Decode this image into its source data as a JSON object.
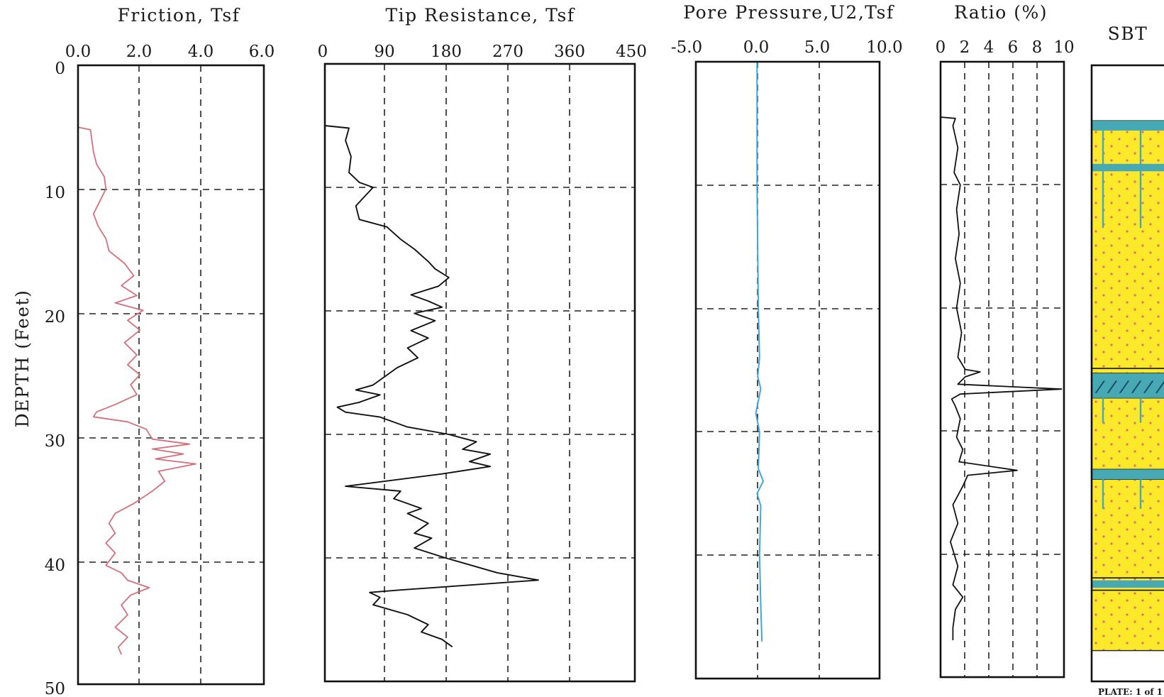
{
  "depth_axis": {
    "label": "DEPTH (Feet)",
    "ticks": [
      "0",
      "10",
      "20",
      "30",
      "40",
      "50"
    ]
  },
  "plate_text": "PLATE: 1 of 1",
  "colors": {
    "friction_line": "#d4707c",
    "pore_line": "#3fa7dc",
    "sand_fill": "#fbe92a",
    "sand_dots": "#e96a7e",
    "clay_band": "#46a9b4",
    "frame": "#111111"
  },
  "chart_data": [
    {
      "type": "line",
      "title": "Friction, Tsf",
      "xlim": [
        0,
        6
      ],
      "ylim": [
        0,
        50
      ],
      "x_ticks": [
        "0.0",
        "2.0",
        "4.0",
        "6.0"
      ],
      "y_ticks": [
        "0",
        "10",
        "20",
        "30",
        "40",
        "50"
      ],
      "ylabel": "DEPTH (Feet)",
      "grid": true,
      "series": [
        {
          "points": [
            [
              0,
              0
            ],
            [
              0,
              5
            ],
            [
              0.4,
              5.2
            ],
            [
              0.5,
              7
            ],
            [
              0.6,
              8
            ],
            [
              0.85,
              9
            ],
            [
              0.9,
              10
            ],
            [
              0.7,
              11
            ],
            [
              0.5,
              12
            ],
            [
              0.65,
              13
            ],
            [
              0.9,
              14
            ],
            [
              1.0,
              15
            ],
            [
              1.5,
              16
            ],
            [
              1.8,
              17
            ],
            [
              1.4,
              17.8
            ],
            [
              1.9,
              18.6
            ],
            [
              1.2,
              19.2
            ],
            [
              2.1,
              19.8
            ],
            [
              1.6,
              20.6
            ],
            [
              2.0,
              21.4
            ],
            [
              1.5,
              22.4
            ],
            [
              1.9,
              23.4
            ],
            [
              1.6,
              24.2
            ],
            [
              2.0,
              25
            ],
            [
              1.7,
              25.8
            ],
            [
              1.9,
              26.6
            ],
            [
              1.2,
              27.4
            ],
            [
              0.6,
              28.0
            ],
            [
              0.5,
              28.4
            ],
            [
              1.6,
              28.8
            ],
            [
              2.2,
              29.4
            ],
            [
              2.4,
              30.2
            ],
            [
              3.6,
              30.6
            ],
            [
              2.4,
              31.0
            ],
            [
              3.4,
              31.4
            ],
            [
              2.5,
              31.8
            ],
            [
              3.8,
              32.2
            ],
            [
              2.6,
              32.8
            ],
            [
              2.8,
              33.6
            ],
            [
              2.4,
              34.4
            ],
            [
              1.8,
              35.4
            ],
            [
              1.2,
              36.2
            ],
            [
              1.0,
              37.0
            ],
            [
              1.2,
              37.8
            ],
            [
              0.9,
              38.6
            ],
            [
              1.2,
              39.4
            ],
            [
              0.9,
              40.4
            ],
            [
              1.4,
              41.0
            ],
            [
              1.6,
              41.6
            ],
            [
              2.3,
              42.2
            ],
            [
              1.7,
              42.8
            ],
            [
              1.4,
              43.6
            ],
            [
              1.6,
              44.4
            ],
            [
              1.2,
              45.4
            ],
            [
              1.6,
              46.2
            ],
            [
              1.3,
              47.0
            ],
            [
              1.4,
              47.6
            ]
          ]
        }
      ]
    },
    {
      "type": "line",
      "title": "Tip Resistance, Tsf",
      "xlim": [
        0,
        450
      ],
      "ylim": [
        0,
        50
      ],
      "x_ticks": [
        "0",
        "90",
        "180",
        "270",
        "360",
        "450"
      ],
      "grid": true,
      "series": [
        {
          "points": [
            [
              0,
              5
            ],
            [
              35,
              5.2
            ],
            [
              30,
              6.2
            ],
            [
              38,
              7.5
            ],
            [
              35,
              8.8
            ],
            [
              50,
              9.6
            ],
            [
              70,
              10.0
            ],
            [
              60,
              10.6
            ],
            [
              45,
              11.5
            ],
            [
              50,
              12.6
            ],
            [
              90,
              13.2
            ],
            [
              110,
              14.2
            ],
            [
              130,
              15.0
            ],
            [
              150,
              16.0
            ],
            [
              160,
              16.6
            ],
            [
              180,
              17.3
            ],
            [
              165,
              18.0
            ],
            [
              125,
              18.7
            ],
            [
              150,
              19.2
            ],
            [
              170,
              19.7
            ],
            [
              130,
              20.2
            ],
            [
              160,
              20.8
            ],
            [
              125,
              21.6
            ],
            [
              150,
              22.2
            ],
            [
              120,
              23.0
            ],
            [
              135,
              23.8
            ],
            [
              105,
              24.6
            ],
            [
              70,
              26.0
            ],
            [
              45,
              26.4
            ],
            [
              80,
              26.8
            ],
            [
              50,
              27.4
            ],
            [
              18,
              27.8
            ],
            [
              30,
              28.2
            ],
            [
              80,
              28.6
            ],
            [
              120,
              29.4
            ],
            [
              180,
              30.0
            ],
            [
              220,
              30.6
            ],
            [
              200,
              31.2
            ],
            [
              240,
              31.6
            ],
            [
              210,
              32.2
            ],
            [
              240,
              32.6
            ],
            [
              170,
              33.2
            ],
            [
              30,
              34.2
            ],
            [
              110,
              34.6
            ],
            [
              100,
              35.2
            ],
            [
              140,
              36.0
            ],
            [
              120,
              36.4
            ],
            [
              150,
              37.2
            ],
            [
              130,
              38.0
            ],
            [
              155,
              38.4
            ],
            [
              130,
              39.2
            ],
            [
              175,
              40.0
            ],
            [
              250,
              41.2
            ],
            [
              310,
              41.8
            ],
            [
              210,
              42.2
            ],
            [
              110,
              42.6
            ],
            [
              65,
              42.8
            ],
            [
              80,
              43.2
            ],
            [
              70,
              43.8
            ],
            [
              120,
              44.6
            ],
            [
              150,
              45.4
            ],
            [
              140,
              46.0
            ],
            [
              170,
              46.6
            ],
            [
              185,
              47.2
            ]
          ]
        }
      ]
    },
    {
      "type": "line",
      "title": "Pore Pressure,U2,Tsf",
      "xlim": [
        -5,
        10
      ],
      "ylim": [
        0,
        50
      ],
      "x_ticks": [
        "-5.0",
        "0.0",
        "5.0",
        "10.0"
      ],
      "grid": true,
      "series": [
        {
          "points": [
            [
              0,
              0
            ],
            [
              0,
              10
            ],
            [
              0.1,
              20
            ],
            [
              0.2,
              24
            ],
            [
              0.05,
              25.5
            ],
            [
              0.3,
              26.5
            ],
            [
              -0.1,
              28.5
            ],
            [
              0.2,
              30
            ],
            [
              0.1,
              33
            ],
            [
              0.5,
              34
            ],
            [
              0,
              35
            ],
            [
              0.3,
              36
            ],
            [
              0.2,
              40
            ],
            [
              0.3,
              44
            ],
            [
              0.4,
              47
            ]
          ]
        }
      ]
    },
    {
      "type": "line",
      "title": "Ratio (%)",
      "xlim": [
        0,
        10
      ],
      "ylim": [
        0,
        50
      ],
      "x_ticks": [
        "0",
        "2",
        "4",
        "6",
        "8",
        "10"
      ],
      "grid": true,
      "series": [
        {
          "points": [
            [
              0,
              0
            ],
            [
              0,
              4.5
            ],
            [
              1.2,
              4.6
            ],
            [
              1.0,
              5.2
            ],
            [
              1.4,
              7
            ],
            [
              1.1,
              9
            ],
            [
              1.6,
              10
            ],
            [
              1.3,
              12
            ],
            [
              1.5,
              14
            ],
            [
              1.2,
              16
            ],
            [
              1.6,
              18
            ],
            [
              1.3,
              20
            ],
            [
              1.7,
              22
            ],
            [
              1.4,
              24
            ],
            [
              2.0,
              25
            ],
            [
              3.2,
              25.2
            ],
            [
              2.0,
              25.6
            ],
            [
              1.4,
              26.2
            ],
            [
              9.8,
              26.6
            ],
            [
              1.6,
              27.0
            ],
            [
              0.9,
              27.4
            ],
            [
              1.2,
              28
            ],
            [
              1.6,
              29
            ],
            [
              1.3,
              30.5
            ],
            [
              1.8,
              31.5
            ],
            [
              1.5,
              32.5
            ],
            [
              6.2,
              33.2
            ],
            [
              2.2,
              33.6
            ],
            [
              1.8,
              34.5
            ],
            [
              1.0,
              36
            ],
            [
              1.4,
              37.5
            ],
            [
              0.8,
              39
            ],
            [
              1.4,
              41
            ],
            [
              1.0,
              42.5
            ],
            [
              1.8,
              43.5
            ],
            [
              1.2,
              44.5
            ],
            [
              1.0,
              46
            ],
            [
              1.0,
              47
            ]
          ]
        }
      ]
    },
    {
      "type": "table",
      "title": "SBT",
      "ylim": [
        0,
        50
      ],
      "layers": [
        {
          "from": 0,
          "to": 4.5,
          "soil": "blank"
        },
        {
          "from": 4.5,
          "to": 25.0,
          "soil": "sand"
        },
        {
          "from": 25.0,
          "to": 27.0,
          "soil": "silt mixture"
        },
        {
          "from": 27.0,
          "to": 32.8,
          "soil": "sand"
        },
        {
          "from": 32.8,
          "to": 33.6,
          "soil": "silt mixture"
        },
        {
          "from": 33.6,
          "to": 47.5,
          "soil": "sand"
        }
      ]
    }
  ]
}
